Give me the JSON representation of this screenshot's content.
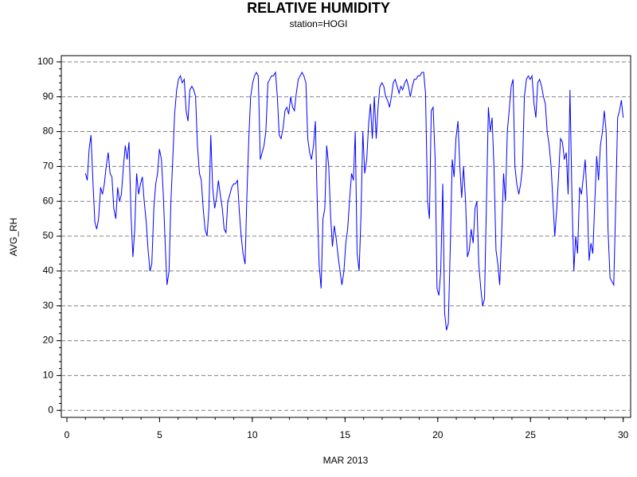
{
  "chart_data": {
    "type": "line",
    "title": "RELATIVE HUMIDITY",
    "subtitle": "station=HOGI",
    "x_label": "MAR 2013",
    "y_label": "AVG_RH",
    "xlim": [
      -0.3,
      30.4
    ],
    "ylim": [
      -2,
      101.8
    ],
    "xticks": [
      0,
      5,
      10,
      15,
      20,
      25,
      30
    ],
    "yticks": [
      0,
      10,
      20,
      30,
      40,
      50,
      60,
      70,
      80,
      90,
      100
    ],
    "xminorticks": [
      0,
      1,
      2,
      3,
      4,
      5,
      6,
      7,
      8,
      9,
      10,
      11,
      12,
      13,
      14,
      15,
      16,
      17,
      18,
      19,
      20,
      21,
      22,
      23,
      24,
      25,
      26,
      27,
      28,
      29,
      30
    ],
    "yminorticks": [
      0,
      2,
      4,
      6,
      8,
      10,
      12,
      14,
      16,
      18,
      20,
      22,
      24,
      26,
      28,
      30,
      32,
      34,
      36,
      38,
      40,
      42,
      44,
      46,
      48,
      50,
      52,
      54,
      56,
      58,
      60,
      62,
      64,
      66,
      68,
      70,
      72,
      74,
      76,
      78,
      80,
      82,
      84,
      86,
      88,
      90,
      92,
      94,
      96,
      98,
      100
    ],
    "grid": true,
    "series": [
      {
        "color": "#0000ff",
        "x": [
          1.0,
          1.1,
          1.2,
          1.3,
          1.41,
          1.51,
          1.61,
          1.71,
          1.82,
          1.92,
          2.02,
          2.12,
          2.23,
          2.33,
          2.43,
          2.53,
          2.64,
          2.74,
          2.84,
          2.94,
          3.05,
          3.15,
          3.25,
          3.35,
          3.46,
          3.56,
          3.66,
          3.76,
          3.87,
          3.97,
          4.07,
          4.17,
          4.28,
          4.38,
          4.48,
          4.58,
          4.69,
          4.79,
          4.89,
          4.99,
          5.1,
          5.2,
          5.3,
          5.4,
          5.51,
          5.61,
          5.71,
          5.81,
          5.92,
          6.02,
          6.12,
          6.22,
          6.33,
          6.43,
          6.53,
          6.63,
          6.74,
          6.84,
          6.94,
          7.04,
          7.15,
          7.25,
          7.35,
          7.45,
          7.56,
          7.66,
          7.76,
          7.86,
          7.97,
          8.07,
          8.17,
          8.27,
          8.38,
          8.48,
          8.58,
          8.68,
          8.79,
          8.89,
          8.99,
          9.09,
          9.2,
          9.3,
          9.4,
          9.5,
          9.61,
          9.71,
          9.81,
          9.91,
          10.02,
          10.12,
          10.22,
          10.32,
          10.43,
          10.53,
          10.63,
          10.73,
          10.84,
          10.94,
          11.04,
          11.14,
          11.25,
          11.35,
          11.45,
          11.55,
          11.66,
          11.76,
          11.86,
          11.96,
          12.07,
          12.17,
          12.27,
          12.37,
          12.48,
          12.58,
          12.68,
          12.78,
          12.89,
          12.99,
          13.09,
          13.19,
          13.3,
          13.4,
          13.5,
          13.6,
          13.71,
          13.81,
          13.91,
          14.01,
          14.12,
          14.22,
          14.32,
          14.42,
          14.53,
          14.63,
          14.73,
          14.83,
          14.94,
          15.04,
          15.14,
          15.24,
          15.35,
          15.45,
          15.55,
          15.65,
          15.76,
          15.86,
          15.96,
          16.06,
          16.17,
          16.27,
          16.37,
          16.47,
          16.58,
          16.68,
          16.78,
          16.88,
          16.99,
          17.09,
          17.19,
          17.29,
          17.4,
          17.5,
          17.6,
          17.7,
          17.81,
          17.91,
          18.01,
          18.11,
          18.22,
          18.32,
          18.42,
          18.52,
          18.63,
          18.73,
          18.83,
          18.93,
          19.04,
          19.14,
          19.24,
          19.34,
          19.45,
          19.55,
          19.65,
          19.75,
          19.86,
          19.96,
          20.06,
          20.16,
          20.27,
          20.37,
          20.47,
          20.57,
          20.68,
          20.78,
          20.88,
          20.98,
          21.09,
          21.19,
          21.29,
          21.39,
          21.5,
          21.6,
          21.7,
          21.8,
          21.91,
          22.01,
          22.11,
          22.21,
          22.32,
          22.42,
          22.52,
          22.62,
          22.73,
          22.83,
          22.93,
          23.03,
          23.14,
          23.24,
          23.34,
          23.44,
          23.55,
          23.65,
          23.75,
          23.85,
          23.96,
          24.06,
          24.16,
          24.26,
          24.37,
          24.47,
          24.57,
          24.67,
          24.78,
          24.88,
          24.98,
          25.08,
          25.19,
          25.29,
          25.39,
          25.49,
          25.6,
          25.7,
          25.8,
          25.9,
          26.01,
          26.11,
          26.21,
          26.31,
          26.42,
          26.52,
          26.62,
          26.72,
          26.83,
          26.93,
          27.03,
          27.13,
          27.24,
          27.34,
          27.44,
          27.54,
          27.65,
          27.75,
          27.85,
          27.95,
          28.06,
          28.16,
          28.26,
          28.36,
          28.47,
          28.57,
          28.67,
          28.77,
          28.88,
          28.98,
          29.08,
          29.18,
          29.29,
          29.39,
          29.49,
          29.59,
          29.7,
          29.8,
          29.9,
          30.0
        ],
        "values": [
          68,
          66,
          75,
          79,
          65,
          54,
          52,
          55,
          64,
          62,
          65,
          70,
          74,
          68,
          67,
          58,
          55,
          64,
          60,
          62,
          70,
          76,
          72,
          77,
          56,
          44,
          52,
          68,
          62,
          65,
          67,
          60,
          54,
          46,
          40,
          42,
          58,
          65,
          68,
          75,
          72,
          62,
          48,
          36,
          40,
          60,
          72,
          85,
          92,
          95,
          96,
          94,
          95,
          86,
          83,
          92,
          93,
          92,
          90,
          76,
          68,
          66,
          58,
          52,
          50,
          58,
          79,
          64,
          58,
          61,
          66,
          62,
          58,
          52,
          51,
          60,
          62,
          64,
          65,
          65,
          66,
          57,
          50,
          45,
          42,
          62,
          78,
          90,
          94,
          96,
          97,
          96,
          72,
          74,
          76,
          80,
          94,
          95,
          96,
          96,
          97,
          90,
          79,
          78,
          81,
          86,
          87,
          85,
          90,
          87,
          86,
          91,
          95,
          96,
          97,
          96,
          94,
          78,
          74,
          72,
          76,
          83,
          60,
          42,
          35,
          55,
          58,
          76,
          70,
          56,
          47,
          53,
          49,
          44,
          40,
          36,
          40,
          48,
          52,
          60,
          68,
          66,
          80,
          45,
          40,
          56,
          80,
          68,
          72,
          82,
          88,
          78,
          90,
          78,
          87,
          93,
          94,
          93,
          90,
          89,
          87,
          90,
          94,
          95,
          93,
          91,
          93,
          92,
          94,
          95,
          93,
          90,
          93,
          95,
          95,
          96,
          96,
          97,
          97,
          91,
          60,
          55,
          86,
          87,
          72,
          35,
          33,
          40,
          65,
          28,
          23,
          25,
          48,
          72,
          67,
          78,
          83,
          70,
          61,
          70,
          60,
          44,
          46,
          52,
          48,
          58,
          60,
          42,
          35,
          30,
          32,
          58,
          87,
          80,
          84,
          70,
          46,
          42,
          36,
          50,
          68,
          60,
          80,
          86,
          93,
          95,
          70,
          65,
          62,
          65,
          70,
          90,
          95,
          96,
          95,
          96,
          88,
          84,
          94,
          95,
          93,
          90,
          88,
          80,
          76,
          70,
          60,
          50,
          58,
          68,
          78,
          77,
          72,
          74,
          62,
          92,
          60,
          40,
          50,
          45,
          64,
          62,
          67,
          72,
          60,
          43,
          48,
          45,
          60,
          73,
          66,
          76,
          80,
          86,
          80,
          52,
          38,
          37,
          36,
          58,
          84,
          86,
          89,
          84
        ]
      }
    ]
  }
}
